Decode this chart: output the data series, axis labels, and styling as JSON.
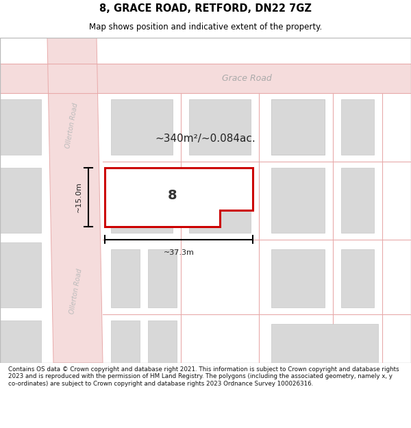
{
  "title": "8, GRACE ROAD, RETFORD, DN22 7GZ",
  "subtitle": "Map shows position and indicative extent of the property.",
  "footer": "Contains OS data © Crown copyright and database right 2021. This information is subject to Crown copyright and database rights 2023 and is reproduced with the permission of HM Land Registry. The polygons (including the associated geometry, namely x, y co-ordinates) are subject to Crown copyright and database rights 2023 Ordnance Survey 100026316.",
  "map_bg": "#f2f2f2",
  "road_fill": "#f5dcdc",
  "road_line": "#e8aaaa",
  "building_fill": "#d8d8d8",
  "building_edge": "#c8c8c8",
  "highlight_color": "#cc0000",
  "area_text": "~340m²/~0.084ac.",
  "width_text": "~37.3m",
  "height_text": "~15.0m",
  "number_text": "8",
  "grace_road_label": "Grace Road",
  "ollerton_label": "Ollerton Road"
}
